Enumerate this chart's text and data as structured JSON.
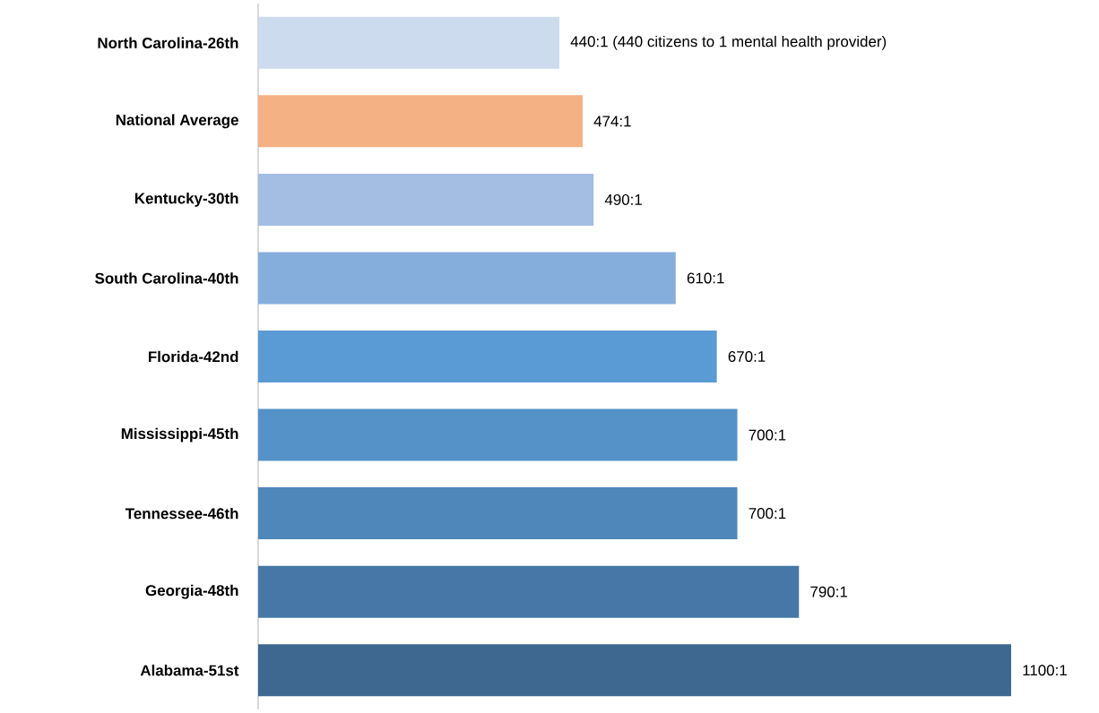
{
  "chart_data": {
    "type": "bar",
    "orientation": "horizontal",
    "categories": [
      "North Carolina-26th",
      "National Average",
      "Kentucky-30th",
      "South Carolina-40th",
      "Florida-42nd",
      "Mississippi-45th",
      "Tennessee-46th",
      "Georgia-48th",
      "Alabama-51st"
    ],
    "values": [
      440,
      474,
      490,
      610,
      670,
      700,
      700,
      790,
      1100
    ],
    "value_labels": [
      "440:1 (440 citizens to 1 mental health provider)",
      "474:1",
      "490:1",
      "610:1",
      "670:1",
      "700:1",
      "700:1",
      "790:1",
      "1100:1"
    ],
    "colors": [
      "#cddbee",
      "#f4b183",
      "#a3bde3",
      "#86aedd",
      "#5b9bd5",
      "#5592c8",
      "#4f87ba",
      "#4677a6",
      "#3e6890"
    ]
  }
}
